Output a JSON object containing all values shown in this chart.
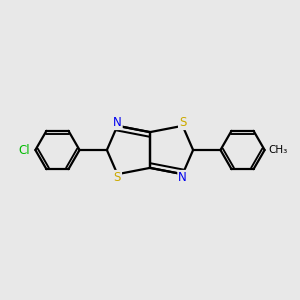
{
  "bg_color": "#e8e8e8",
  "bond_color": "#000000",
  "bond_width": 1.6,
  "atom_colors": {
    "S": "#ccaa00",
    "N": "#0000ee",
    "Cl": "#00bb00",
    "C": "#000000"
  },
  "figsize": [
    3.0,
    3.0
  ],
  "dpi": 100,
  "xlim": [
    -0.7,
    0.7
  ],
  "ylim": [
    -0.4,
    0.4
  ]
}
